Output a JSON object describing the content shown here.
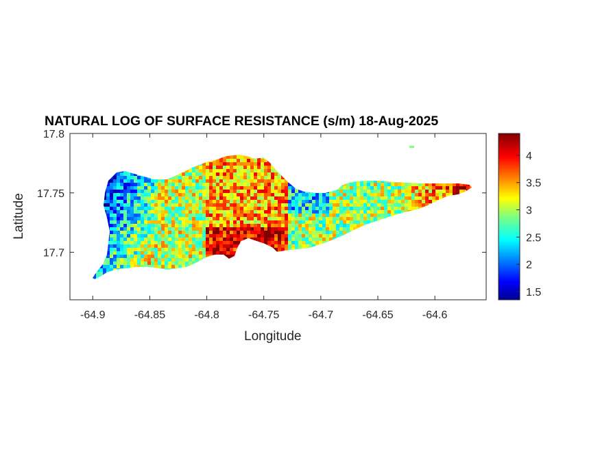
{
  "chart_data": {
    "type": "heatmap",
    "title": "NATURAL LOG OF SURFACE RESISTANCE (s/m) 18-Aug-2025",
    "xlabel": "Longitude",
    "ylabel": "Latitude",
    "xlim": [
      -64.92,
      -64.555
    ],
    "ylim": [
      17.66,
      17.8
    ],
    "xticks": [
      -64.9,
      -64.85,
      -64.8,
      -64.75,
      -64.7,
      -64.65,
      -64.6
    ],
    "xtick_labels": [
      "-64.9",
      "-64.85",
      "-64.8",
      "-64.75",
      "-64.7",
      "-64.65",
      "-64.6"
    ],
    "yticks": [
      17.7,
      17.75,
      17.8
    ],
    "ytick_labels": [
      "17.7",
      "17.75",
      "17.8"
    ],
    "colorbar": {
      "colormap": "jet",
      "range": [
        1.35,
        4.4
      ],
      "ticks": [
        1.5,
        2,
        2.5,
        3,
        3.5,
        4
      ],
      "tick_labels": [
        "1.5",
        "2",
        "2.5",
        "3",
        "3.5",
        "4"
      ]
    },
    "grid": false,
    "description_values": {
      "west_end_low": 1.7,
      "central_south_high": 4.2,
      "east_plateau": 3.0,
      "east_tip_high": 3.9
    }
  }
}
